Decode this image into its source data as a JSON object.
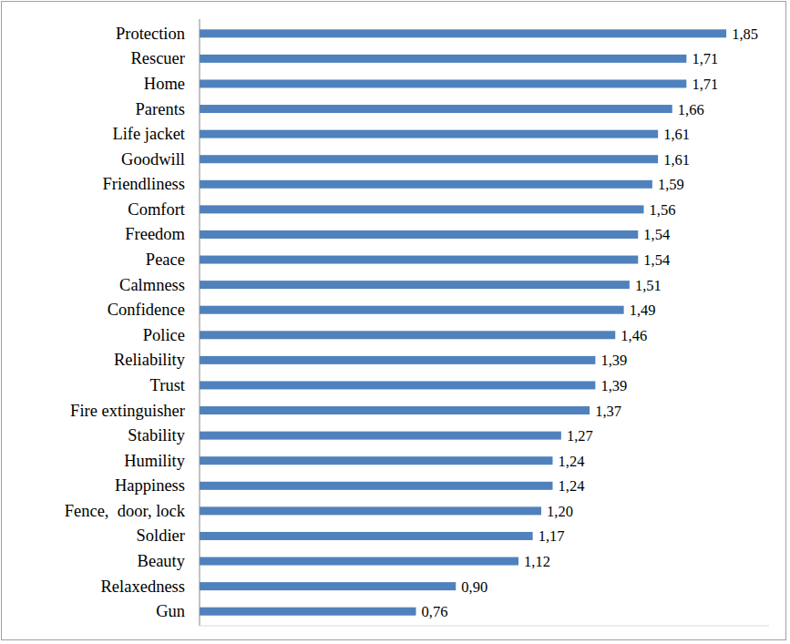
{
  "chart_data": {
    "type": "bar",
    "orientation": "horizontal",
    "categories": [
      "Protection",
      "Rescuer",
      "Home",
      "Parents",
      "Life jacket",
      "Goodwill",
      "Friendliness",
      "Comfort",
      "Freedom",
      "Peace",
      "Calmness",
      "Confidence",
      "Police",
      "Reliability",
      "Trust",
      "Fire extinguisher",
      "Stability",
      "Humility",
      "Happiness",
      "Fence,  door, lock",
      "Soldier",
      "Beauty",
      "Relaxedness",
      "Gun"
    ],
    "values": [
      1.85,
      1.71,
      1.71,
      1.66,
      1.61,
      1.61,
      1.59,
      1.56,
      1.54,
      1.54,
      1.51,
      1.49,
      1.46,
      1.39,
      1.39,
      1.37,
      1.27,
      1.24,
      1.24,
      1.2,
      1.17,
      1.12,
      0.9,
      0.76
    ],
    "value_labels": [
      "1,85",
      "1,71",
      "1,71",
      "1,66",
      "1,61",
      "1,61",
      "1,59",
      "1,56",
      "1,54",
      "1,54",
      "1,51",
      "1,49",
      "1,46",
      "1,39",
      "1,39",
      "1,37",
      "1,27",
      "1,24",
      "1,24",
      "1,20",
      "1,17",
      "1,12",
      "0,90",
      "0,76"
    ],
    "color": "#4f81bd",
    "xlim": [
      0,
      2
    ],
    "data_labels": true,
    "tick_labels": "y"
  }
}
